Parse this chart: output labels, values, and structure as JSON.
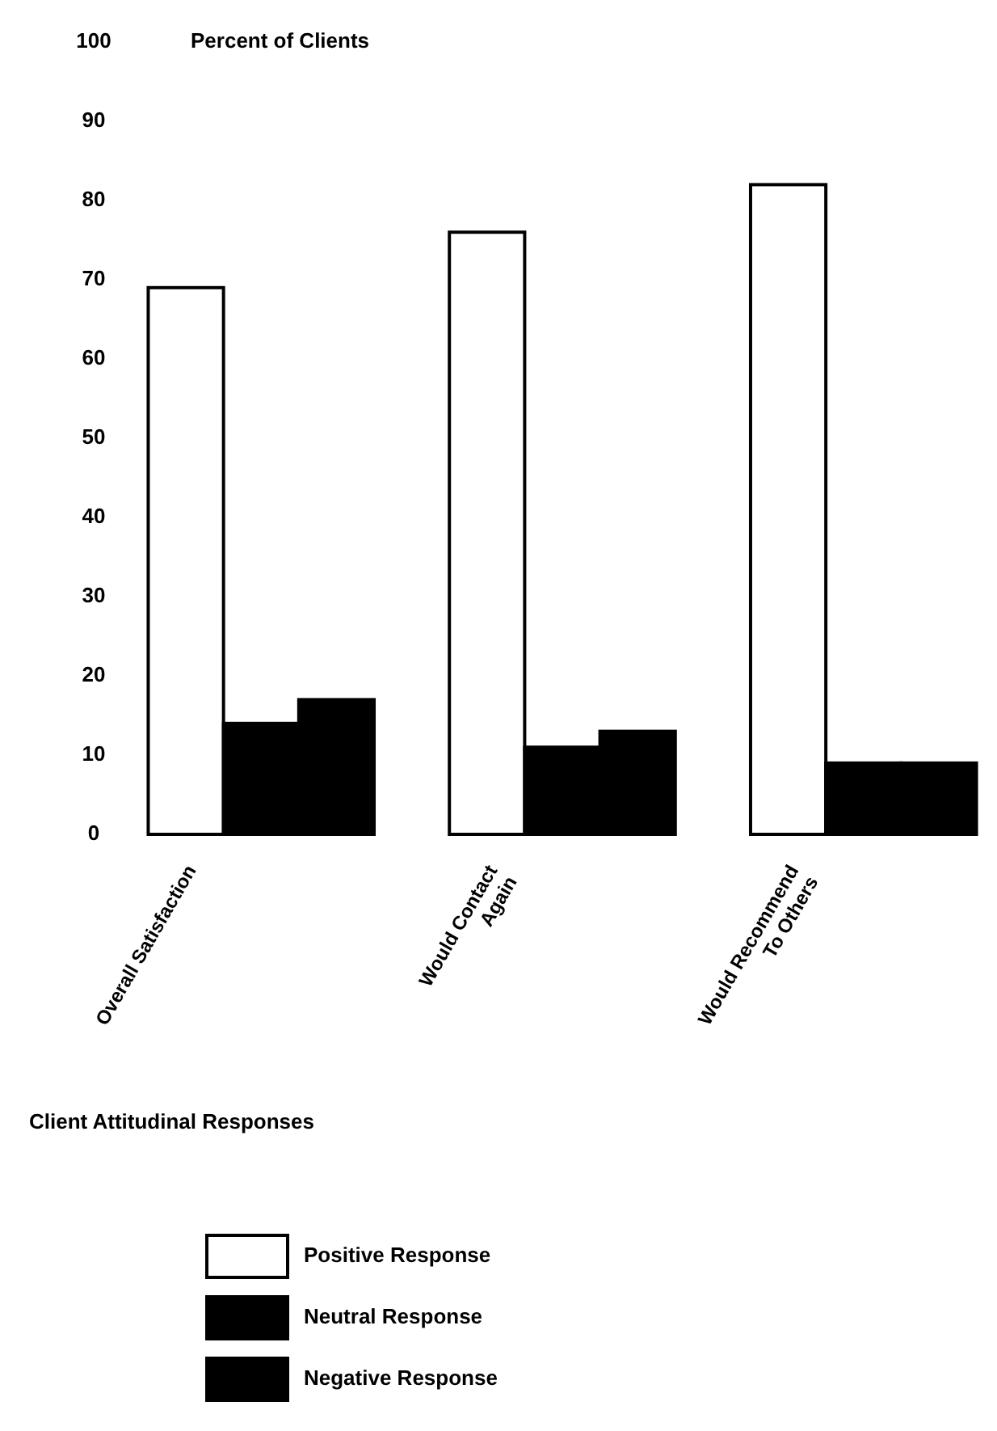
{
  "chart_data": {
    "type": "bar",
    "title": "Percent of Clients",
    "xlabel": "Client Attitudinal Responses",
    "categories": [
      "Overall Satisfaction",
      "Would Contact\nAgain",
      "Would Recommend\nTo Others"
    ],
    "series": [
      {
        "name": "Positive Response",
        "color": "#ffffff",
        "values": [
          69,
          76,
          82
        ]
      },
      {
        "name": "Neutral Response",
        "color": "#000000",
        "values": [
          14,
          11,
          9
        ]
      },
      {
        "name": "Negative Response",
        "color": "#000000",
        "values": [
          17,
          13,
          9
        ]
      }
    ],
    "ylim": [
      0,
      100
    ],
    "yticks": [
      0,
      10,
      20,
      30,
      40,
      50,
      60,
      70,
      80,
      90,
      100
    ],
    "grid": false,
    "legend": "bottom"
  }
}
